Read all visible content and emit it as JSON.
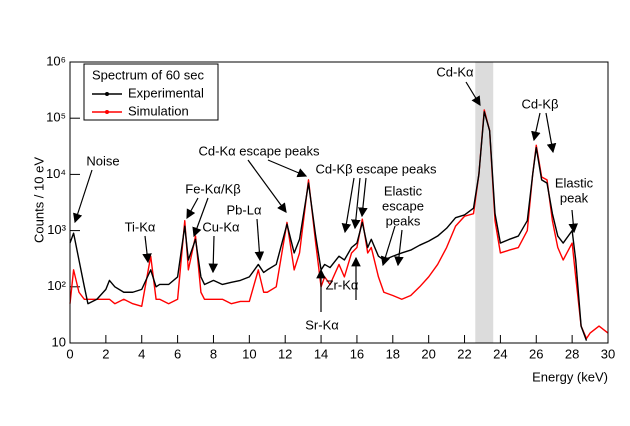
{
  "chart_data": {
    "type": "line",
    "xlabel": "Energy (keV)",
    "ylabel": "Counts / 10 eV",
    "legend_title": "Spectrum of 60 sec",
    "legend": "upper-left",
    "log_y": true,
    "xlim": [
      0,
      30
    ],
    "xticks": [
      0,
      2,
      4,
      6,
      8,
      10,
      12,
      14,
      16,
      18,
      20,
      22,
      24,
      26,
      28,
      30
    ],
    "ylim": [
      10,
      1000000
    ],
    "yticks": [
      {
        "value": 10,
        "label": "10"
      },
      {
        "value": 100,
        "label": "10²"
      },
      {
        "value": 1000,
        "label": "10³"
      },
      {
        "value": 10000,
        "label": "10⁴"
      },
      {
        "value": 100000,
        "label": "10⁵"
      },
      {
        "value": 1000000,
        "label": "10⁶"
      }
    ],
    "shaded_range": [
      22.6,
      23.6
    ],
    "shaded_color": "#dcdcdc",
    "x": [
      0,
      0.2,
      0.5,
      0.8,
      1,
      1.5,
      2,
      2.2,
      2.5,
      3,
      3.5,
      4,
      4.5,
      4.8,
      5,
      5.5,
      6,
      6.4,
      6.6,
      7,
      7.3,
      7.5,
      8,
      8.5,
      9,
      9.5,
      10,
      10.5,
      10.8,
      11,
      11.5,
      12.1,
      12.5,
      12.8,
      13.3,
      13.7,
      14,
      14.2,
      14.5,
      15,
      15.3,
      15.7,
      16,
      16.3,
      16.6,
      16.8,
      17.2,
      17.5,
      18,
      18.5,
      19,
      19.5,
      20,
      20.5,
      21,
      21.5,
      22,
      22.5,
      22.8,
      23.1,
      23.4,
      23.7,
      24,
      24.5,
      25,
      25.5,
      25.8,
      26,
      26.3,
      26.6,
      26.9,
      27.2,
      27.5,
      28,
      28.2,
      28.5,
      28.8,
      29,
      29.5,
      30
    ],
    "series": [
      {
        "name": "Experimental",
        "color": "#000000",
        "values": [
          600,
          900,
          300,
          100,
          50,
          60,
          90,
          130,
          100,
          80,
          80,
          90,
          200,
          100,
          110,
          110,
          150,
          1200,
          300,
          700,
          150,
          110,
          130,
          110,
          120,
          130,
          150,
          250,
          180,
          200,
          250,
          1300,
          400,
          700,
          7000,
          800,
          200,
          250,
          220,
          350,
          300,
          500,
          600,
          1400,
          500,
          700,
          350,
          300,
          350,
          400,
          450,
          550,
          650,
          800,
          1100,
          1700,
          1900,
          2500,
          10000,
          130000,
          60000,
          2000,
          600,
          700,
          800,
          1500,
          10000,
          30000,
          8000,
          7000,
          2000,
          800,
          600,
          1000,
          300,
          20,
          11,
          null,
          null,
          null
        ]
      },
      {
        "name": "Simulation",
        "color": "#ff0000",
        "values": [
          50,
          200,
          80,
          60,
          60,
          60,
          60,
          60,
          50,
          60,
          50,
          45,
          350,
          60,
          60,
          50,
          60,
          1500,
          200,
          800,
          80,
          60,
          60,
          60,
          50,
          55,
          55,
          200,
          80,
          80,
          100,
          1400,
          200,
          400,
          8000,
          600,
          100,
          150,
          110,
          250,
          150,
          400,
          500,
          1600,
          400,
          500,
          150,
          80,
          70,
          60,
          70,
          100,
          150,
          250,
          500,
          1200,
          1800,
          2000,
          10000,
          140000,
          60000,
          1500,
          400,
          450,
          500,
          1000,
          10000,
          33000,
          9000,
          8000,
          1500,
          500,
          300,
          600,
          150,
          20,
          12,
          15,
          20,
          15
        ]
      }
    ],
    "annotations": [
      {
        "lines": [
          "Noise"
        ]
      },
      {
        "lines": [
          "Ti-Kα"
        ]
      },
      {
        "lines": [
          "Fe-Kα/Kβ"
        ]
      },
      {
        "lines": [
          "Cu-Kα"
        ]
      },
      {
        "lines": [
          "Pb-Lα"
        ]
      },
      {
        "lines": [
          "Cd-Kα escape peaks"
        ]
      },
      {
        "lines": [
          "Cd-Kβ escape peaks"
        ]
      },
      {
        "lines": [
          "Elastic",
          "escape",
          "peaks"
        ]
      },
      {
        "lines": [
          "Sr-Kα"
        ]
      },
      {
        "lines": [
          "Zr-Kα"
        ]
      },
      {
        "lines": [
          "Cd-Kα"
        ]
      },
      {
        "lines": [
          "Cd-Kβ"
        ]
      },
      {
        "lines": [
          "Elastic",
          "peak"
        ]
      }
    ]
  }
}
